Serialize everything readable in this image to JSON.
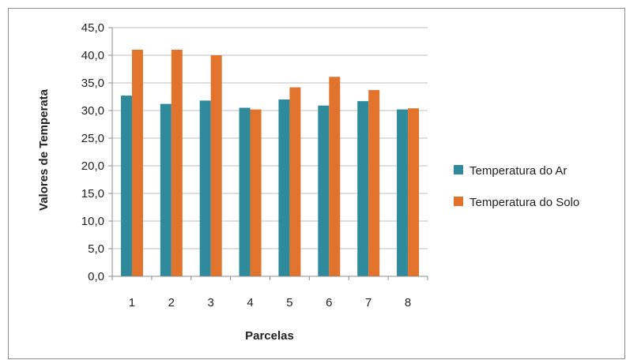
{
  "chart_data": {
    "type": "bar",
    "title": "",
    "xlabel": "Parcelas",
    "ylabel": "Valores de Temperata",
    "categories": [
      "1",
      "2",
      "3",
      "4",
      "5",
      "6",
      "7",
      "8"
    ],
    "series": [
      {
        "name": "Temperatura do Ar",
        "color": "#2f8a9c",
        "values": [
          32.7,
          31.2,
          31.8,
          30.5,
          32.0,
          30.9,
          31.7,
          30.2
        ]
      },
      {
        "name": "Temperatura do Solo",
        "color": "#e2732d",
        "values": [
          41.0,
          41.0,
          40.0,
          30.2,
          34.2,
          36.1,
          33.7,
          30.4
        ]
      }
    ],
    "ylim": [
      0,
      45
    ],
    "yticks": [
      "0,0",
      "5,0",
      "10,0",
      "15,0",
      "20,0",
      "25,0",
      "30,0",
      "35,0",
      "40,0",
      "45,0"
    ],
    "grid": true,
    "legend_position": "right"
  }
}
